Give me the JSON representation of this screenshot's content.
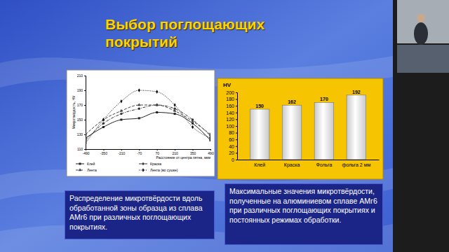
{
  "slide": {
    "title": "Выбор поглощающих покрытий",
    "captions": [
      "Распределение микротвёрдости вдоль обработанной зоны образца из сплава АМг6 при различных поглощающих покрытиях.",
      "Максимальные значения микротвёрдости, полученные на алюминиевом сплаве АМг6 при различных поглощающих покрытиях и постоянных режимах обработки."
    ]
  },
  "chart_data": [
    {
      "type": "line",
      "x_label": "Расстояние от центра пятна, мкм",
      "y_label": "Микротвёрдость, HV",
      "x": [
        -490,
        -350,
        -210,
        -70,
        70,
        210,
        350,
        490
      ],
      "series": [
        {
          "name": "Клей",
          "color": "#222222",
          "marker": "square",
          "line_style": "solid",
          "values": [
            125,
            140,
            150,
            152,
            160,
            158,
            145,
            122
          ]
        },
        {
          "name": "Краска",
          "color": "#333333",
          "marker": "circle",
          "line_style": "dashdot",
          "values": [
            122,
            145,
            158,
            165,
            170,
            165,
            150,
            128
          ]
        },
        {
          "name": "Лента",
          "color": "#444444",
          "marker": "triangle",
          "line_style": "dashed",
          "values": [
            130,
            150,
            162,
            170,
            170,
            162,
            148,
            130
          ]
        },
        {
          "name": "Лента (во сушке)",
          "color": "#111111",
          "marker": "diamond",
          "line_style": "dotted",
          "values": [
            118,
            150,
            175,
            190,
            188,
            170,
            140,
            125
          ]
        }
      ],
      "xlim": [
        -490,
        490
      ],
      "xticks": [
        -490,
        -350,
        -210,
        -70,
        70,
        210,
        350,
        490
      ],
      "ylim": [
        110,
        210
      ],
      "yticks": [
        110,
        130,
        150,
        170,
        190,
        210
      ],
      "grid": false,
      "legend": "bottom"
    },
    {
      "type": "bar",
      "y_label": "HV",
      "categories": [
        "Клей",
        "Краска",
        "Фольга",
        "фольга 2 мм"
      ],
      "values": [
        150,
        162,
        170,
        192
      ],
      "color": "#c8c8c8",
      "ylim": [
        0,
        200
      ],
      "yticks": [
        0,
        20,
        40,
        60,
        80,
        100,
        120,
        140,
        160,
        180,
        200
      ],
      "grid": false,
      "data_labels": true
    }
  ]
}
